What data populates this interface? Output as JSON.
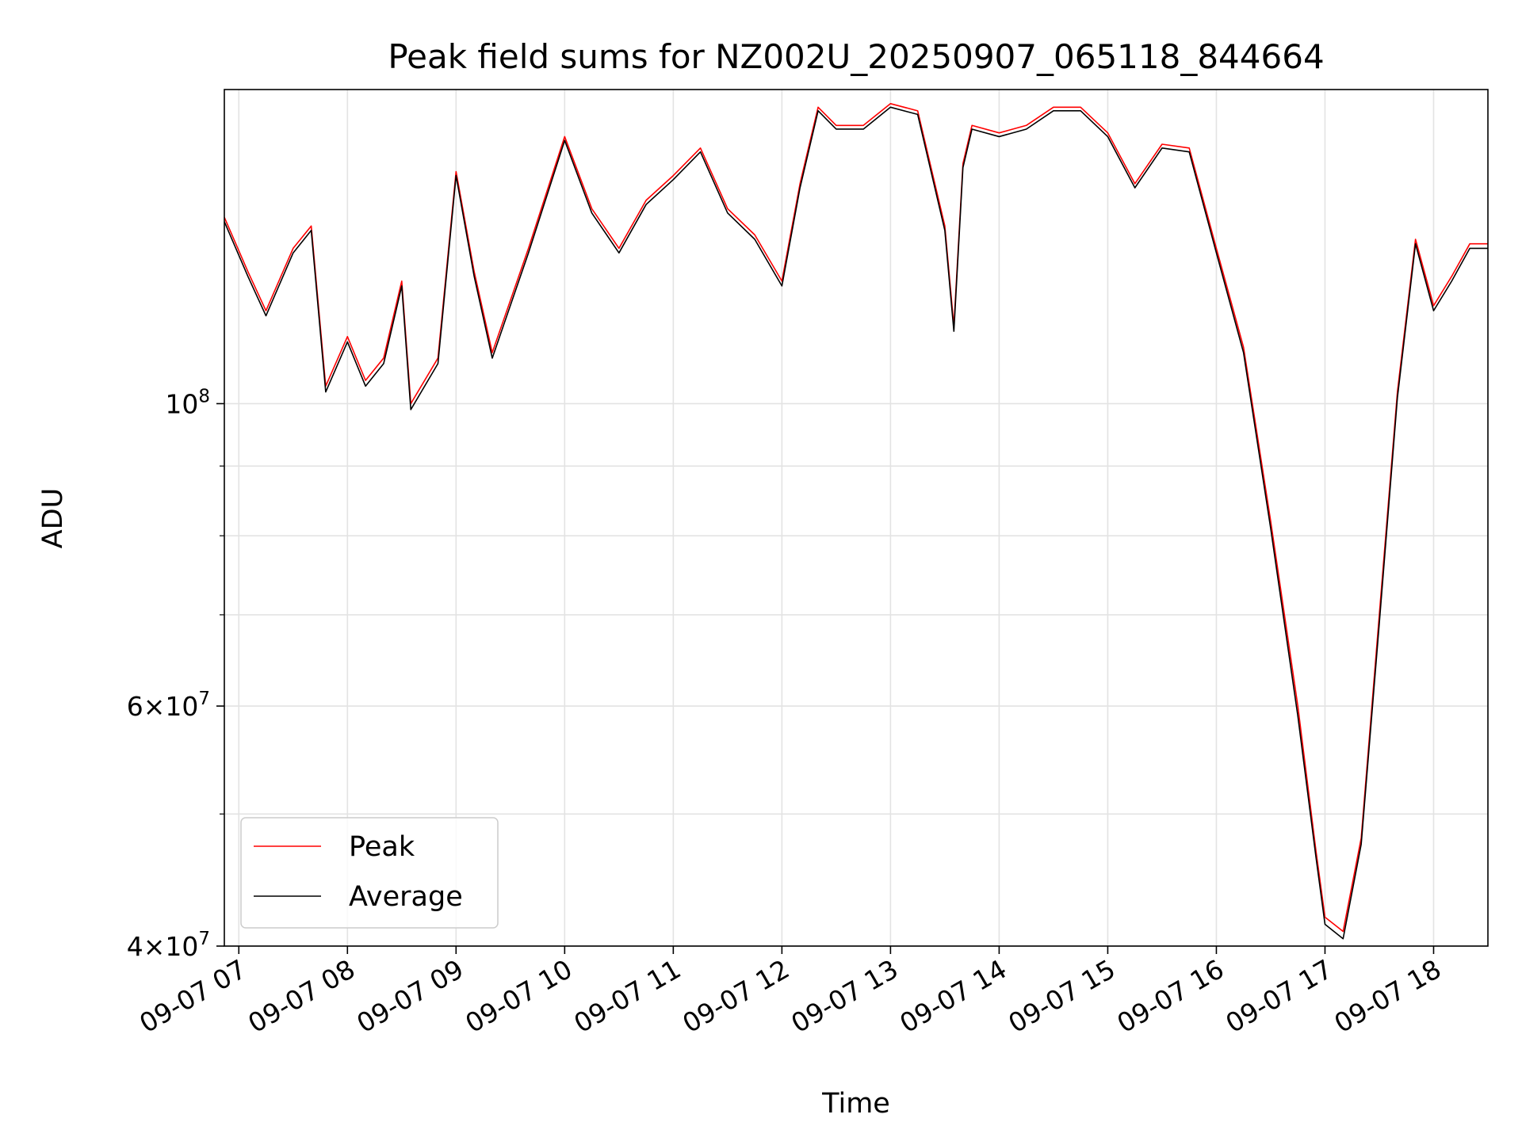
{
  "chart_data": {
    "type": "line",
    "title": "Peak field sums for NZ002U_20250907_065118_844664",
    "xlabel": "Time",
    "ylabel": "ADU",
    "yscale": "log",
    "ylim": [
      40000000,
      170000000
    ],
    "xlim": [
      "09-07 06:52",
      "09-07 18:30"
    ],
    "grid": true,
    "legend_position": "lower-left",
    "x_ticks": [
      {
        "t": "09-07 07:00",
        "label": "09-07 07"
      },
      {
        "t": "09-07 08:00",
        "label": "09-07 08"
      },
      {
        "t": "09-07 09:00",
        "label": "09-07 09"
      },
      {
        "t": "09-07 10:00",
        "label": "09-07 10"
      },
      {
        "t": "09-07 11:00",
        "label": "09-07 11"
      },
      {
        "t": "09-07 12:00",
        "label": "09-07 12"
      },
      {
        "t": "09-07 13:00",
        "label": "09-07 13"
      },
      {
        "t": "09-07 14:00",
        "label": "09-07 14"
      },
      {
        "t": "09-07 15:00",
        "label": "09-07 15"
      },
      {
        "t": "09-07 16:00",
        "label": "09-07 16"
      },
      {
        "t": "09-07 17:00",
        "label": "09-07 17"
      },
      {
        "t": "09-07 18:00",
        "label": "09-07 18"
      }
    ],
    "y_ticks": [
      {
        "v": 40000000,
        "mant": "4",
        "exp": "7"
      },
      {
        "v": 60000000,
        "mant": "6",
        "exp": "7"
      },
      {
        "v": 100000000,
        "mant": "",
        "exp": "8"
      }
    ],
    "y_minor_ticks": [
      50000000,
      70000000,
      80000000,
      90000000
    ],
    "x": [
      "09-07 06:52",
      "09-07 07:05",
      "09-07 07:15",
      "09-07 07:30",
      "09-07 07:40",
      "09-07 07:48",
      "09-07 08:00",
      "09-07 08:10",
      "09-07 08:20",
      "09-07 08:30",
      "09-07 08:35",
      "09-07 08:50",
      "09-07 09:00",
      "09-07 09:10",
      "09-07 09:20",
      "09-07 09:40",
      "09-07 10:00",
      "09-07 10:15",
      "09-07 10:30",
      "09-07 10:45",
      "09-07 11:00",
      "09-07 11:15",
      "09-07 11:30",
      "09-07 11:45",
      "09-07 12:00",
      "09-07 12:10",
      "09-07 12:20",
      "09-07 12:30",
      "09-07 12:45",
      "09-07 13:00",
      "09-07 13:15",
      "09-07 13:30",
      "09-07 13:35",
      "09-07 13:40",
      "09-07 13:45",
      "09-07 14:00",
      "09-07 14:15",
      "09-07 14:30",
      "09-07 14:45",
      "09-07 15:00",
      "09-07 15:15",
      "09-07 15:30",
      "09-07 15:45",
      "09-07 16:00",
      "09-07 16:15",
      "09-07 16:30",
      "09-07 16:45",
      "09-07 16:55",
      "09-07 17:00",
      "09-07 17:10",
      "09-07 17:20",
      "09-07 17:30",
      "09-07 17:40",
      "09-07 17:50",
      "09-07 18:00",
      "09-07 18:10",
      "09-07 18:20",
      "09-07 18:30"
    ],
    "series": [
      {
        "name": "Peak",
        "color": "#ff0000",
        "values": [
          137000000,
          125000000,
          117000000,
          130000000,
          135000000,
          103000000,
          112000000,
          104000000,
          108000000,
          123000000,
          100000000,
          108000000,
          148000000,
          125000000,
          109000000,
          130000000,
          157000000,
          139000000,
          130000000,
          141000000,
          147000000,
          154000000,
          139000000,
          133000000,
          123000000,
          145000000,
          165000000,
          160000000,
          160000000,
          166000000,
          164000000,
          135000000,
          114000000,
          150000000,
          160000000,
          158000000,
          160000000,
          165000000,
          165000000,
          158000000,
          145000000,
          155000000,
          154000000,
          130000000,
          110000000,
          82000000,
          60000000,
          47000000,
          42000000,
          41000000,
          48000000,
          70000000,
          102000000,
          132000000,
          118000000,
          124000000,
          131000000,
          131000000
        ]
      },
      {
        "name": "Average",
        "color": "#000000",
        "values": [
          136000000,
          124000000,
          116000000,
          129000000,
          134000000,
          102000000,
          111000000,
          103000000,
          107000000,
          122000000,
          99000000,
          107000000,
          147000000,
          124000000,
          108000000,
          129000000,
          156000000,
          138000000,
          129000000,
          140000000,
          146000000,
          153000000,
          138000000,
          132000000,
          122000000,
          144000000,
          164000000,
          159000000,
          159000000,
          165000000,
          163000000,
          134000000,
          113000000,
          149000000,
          159000000,
          157000000,
          159000000,
          164000000,
          164000000,
          157000000,
          144000000,
          154000000,
          153000000,
          129000000,
          109000000,
          81000000,
          59000000,
          46500000,
          41500000,
          40500000,
          47500000,
          69000000,
          101000000,
          131000000,
          117000000,
          123000000,
          130000000,
          130000000
        ]
      }
    ]
  }
}
